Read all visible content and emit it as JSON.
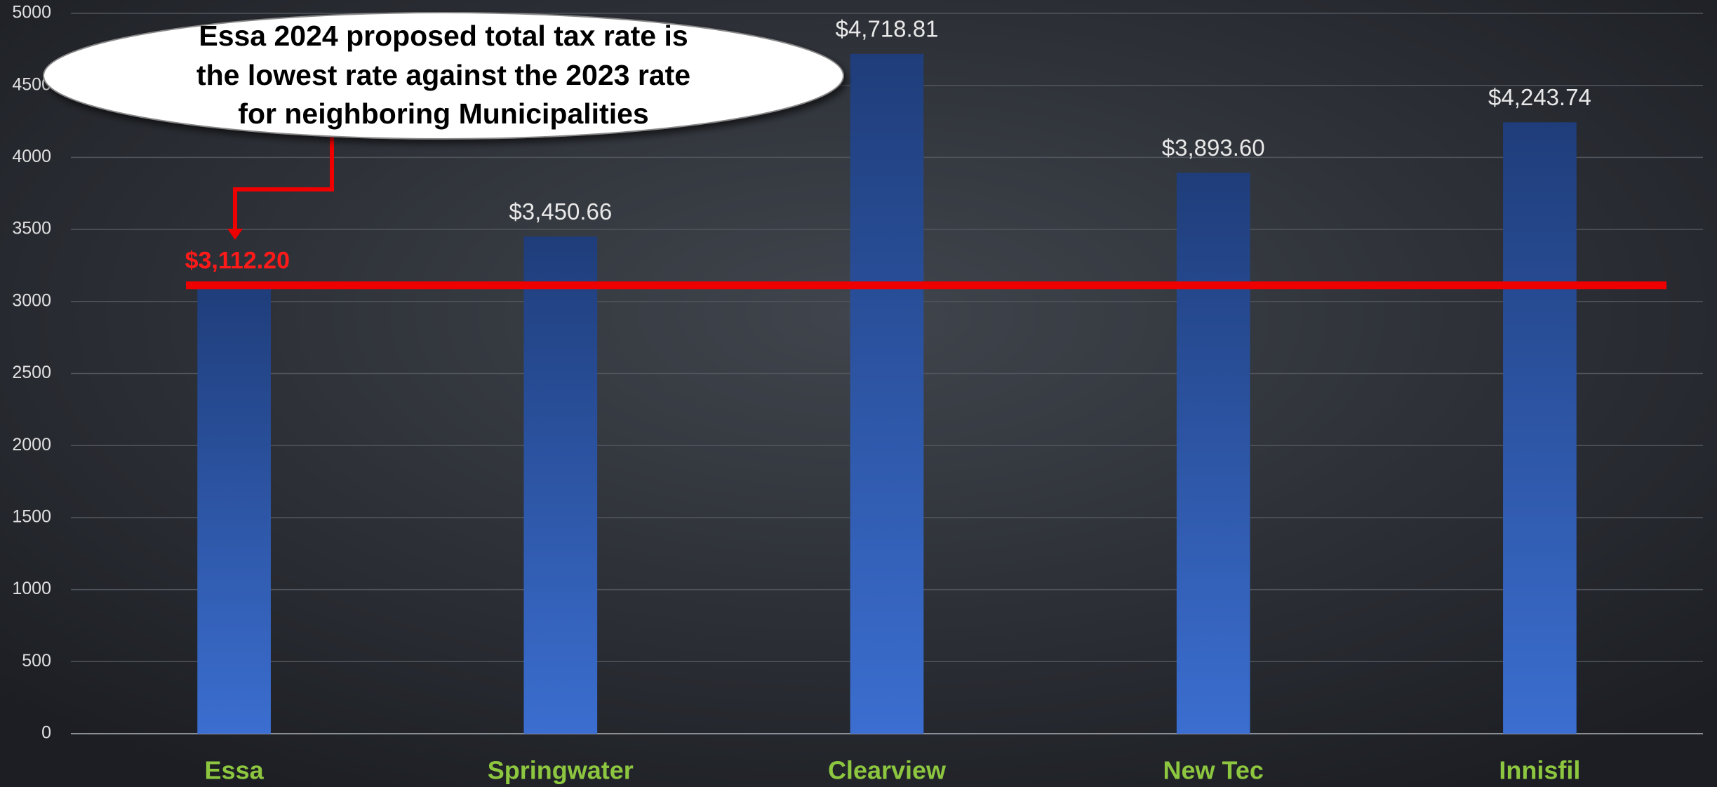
{
  "chart_data": {
    "type": "bar",
    "annotation": [
      "Essa 2024 proposed total tax rate is",
      "the lowest rate against the 2023 rate",
      "for neighboring Municipalities"
    ],
    "categories": [
      "Essa",
      "Springwater",
      "Clearview",
      "New Tec",
      "Innisfil"
    ],
    "values": [
      3112.2,
      3450.66,
      4718.81,
      3893.6,
      4243.74
    ],
    "value_labels": [
      "$3,112.20",
      "$3,450.66",
      "$4,718.81",
      "$3,893.60",
      "$4,243.74"
    ],
    "value_label_colors": [
      "#ff1a1a",
      "#e8e8e8",
      "#e8e8e8",
      "#e8e8e8",
      "#e8e8e8"
    ],
    "gradient": [
      "#1f3d7a",
      "#3b6ed0"
    ],
    "category_color": "#8dc63f",
    "reference_line": {
      "value": 3112.2,
      "color": "#ee0000"
    },
    "ylim": [
      0,
      5000
    ],
    "yticks": [
      0,
      500,
      1000,
      1500,
      2000,
      2500,
      3000,
      3500,
      4000,
      4500,
      5000
    ],
    "grid": true
  }
}
